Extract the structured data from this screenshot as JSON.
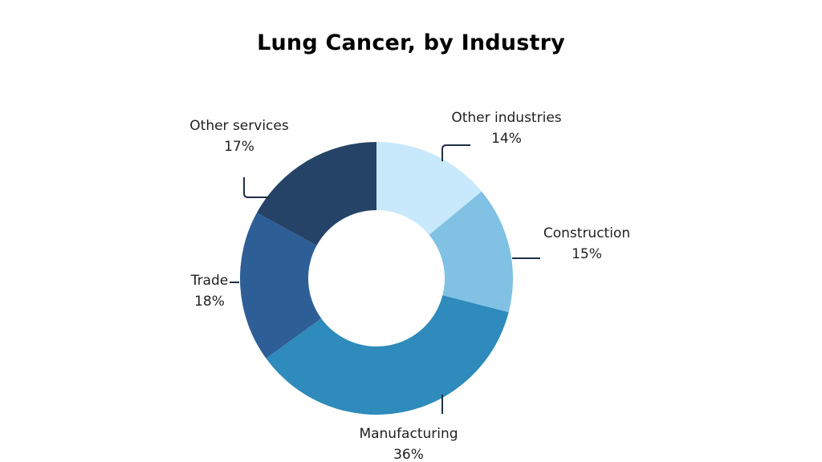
{
  "chart_data": {
    "type": "pie",
    "title": "Lung Cancer, by Industry",
    "donut": true,
    "slices": [
      {
        "label": "Other industries",
        "value": 14,
        "value_label": "14%",
        "color": "#c8e9fb"
      },
      {
        "label": "Construction",
        "value": 15,
        "value_label": "15%",
        "color": "#80c1e4"
      },
      {
        "label": "Manufacturing",
        "value": 36,
        "value_label": "36%",
        "color": "#2e8bbb"
      },
      {
        "label": "Trade",
        "value": 18,
        "value_label": "18%",
        "color": "#2e5e96"
      },
      {
        "label": "Other services",
        "value": 17,
        "value_label": "17%",
        "color": "#254366"
      }
    ]
  }
}
